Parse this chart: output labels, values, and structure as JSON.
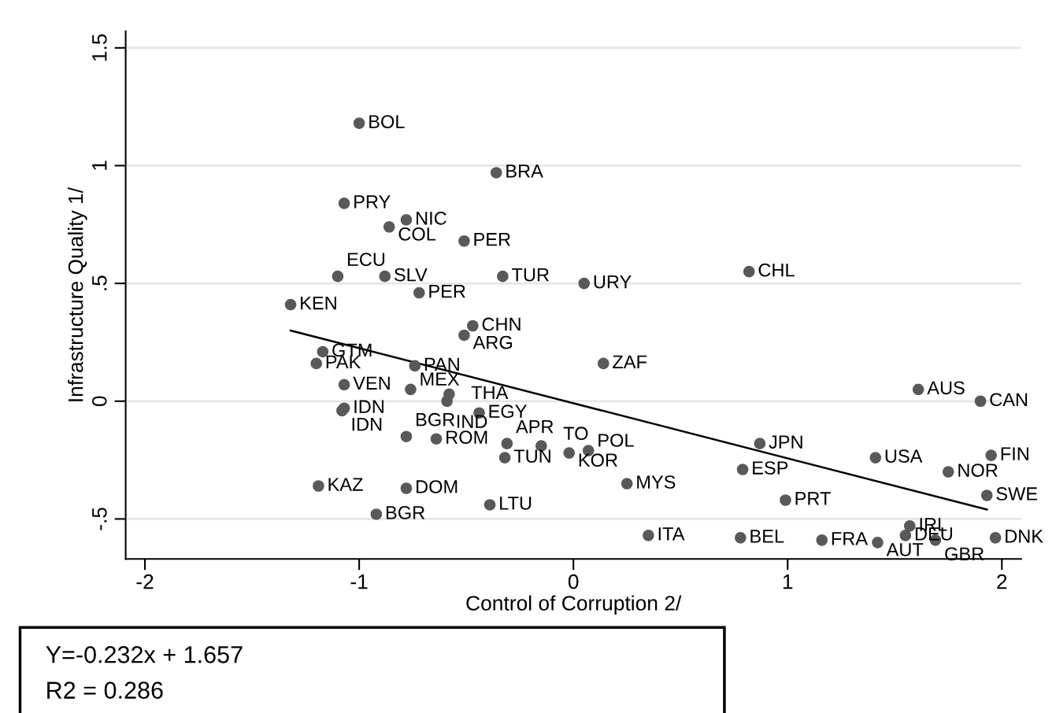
{
  "chart_data": {
    "type": "scatter",
    "xlabel": "Control of Corruption 2/",
    "ylabel": "Infrastructure Quality 1/",
    "xlim": [
      -2.09,
      2.09
    ],
    "ylim": [
      -0.67,
      1.57
    ],
    "xticks": [
      -2,
      -1,
      0,
      1,
      2
    ],
    "yticks": [
      {
        "value": -0.5,
        "label": "-.5"
      },
      0,
      {
        "value": 0.5,
        "label": ".5"
      },
      1,
      1.5
    ],
    "grid": "y",
    "series": [
      {
        "color": "#595959",
        "marker": "circle",
        "x": [
          -1.0,
          -0.36,
          -1.07,
          -0.78,
          -0.86,
          -0.51,
          -1.1,
          -0.88,
          -0.33,
          0.05,
          -0.72,
          0.82,
          -1.32,
          -0.47,
          -0.51,
          -1.17,
          -1.2,
          -0.74,
          0.14,
          -1.07,
          -0.76,
          -0.58,
          -0.59,
          -1.07,
          -1.08,
          -0.44,
          -0.78,
          -0.64,
          -0.31,
          -0.15,
          -0.02,
          0.07,
          -0.32,
          -1.19,
          -0.78,
          -0.39,
          -0.92,
          0.25,
          0.35,
          0.87,
          0.79,
          0.99,
          0.78,
          1.16,
          1.42,
          1.57,
          1.55,
          1.69,
          1.97,
          1.41,
          1.75,
          1.95,
          1.93,
          1.61,
          1.9
        ],
        "values": [
          1.18,
          0.97,
          0.84,
          0.77,
          0.74,
          0.68,
          0.53,
          0.53,
          0.53,
          0.5,
          0.46,
          0.55,
          0.41,
          0.32,
          0.28,
          0.21,
          0.16,
          0.15,
          0.16,
          0.07,
          0.05,
          0.03,
          0.0,
          -0.03,
          -0.04,
          -0.05,
          -0.15,
          -0.16,
          -0.18,
          -0.19,
          -0.22,
          -0.21,
          -0.24,
          -0.36,
          -0.37,
          -0.44,
          -0.48,
          -0.35,
          -0.57,
          -0.18,
          -0.29,
          -0.42,
          -0.58,
          -0.59,
          -0.6,
          -0.53,
          -0.57,
          -0.59,
          -0.58,
          -0.24,
          -0.3,
          -0.23,
          -0.4,
          0.05,
          0.0
        ],
        "value_labels": [
          "BOL",
          "BRA",
          "PRY",
          "NIC",
          "COL",
          "PER",
          "ECU",
          "SLV",
          "TUR",
          "URY",
          "PER",
          "CHL",
          "KEN",
          "CHN",
          "ARG",
          "GTM",
          "PAK",
          "PAN",
          "ZAF",
          "VEN",
          "MEX",
          "THA",
          "IND",
          "IDN",
          "IDN",
          "EGY",
          "BGR",
          "ROM",
          "APR",
          "TO",
          "KOR",
          "POL",
          "TUN",
          "KAZ",
          "DOM",
          "LTU",
          "BGR",
          "MYS",
          "ITA",
          "JPN",
          "ESP",
          "PRT",
          "BEL",
          "FRA",
          "AUT",
          "IRL",
          "DEU",
          "GBR",
          "DNK",
          "USA",
          "NOR",
          "FIN",
          "SWE",
          "AUS",
          "CAN"
        ]
      },
      {
        "type": "line",
        "color": "#000000",
        "x": [
          -1.32,
          1.93
        ],
        "values": [
          0.3,
          -0.46
        ]
      }
    ],
    "annotations": [
      "Y=-0.232x + 1.657",
      "R2 = 0.286"
    ]
  }
}
